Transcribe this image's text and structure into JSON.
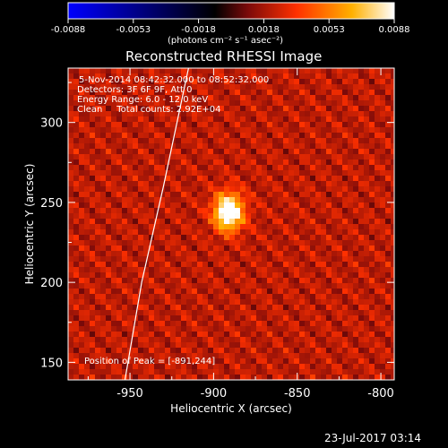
{
  "chart_data": {
    "type": "heatmap",
    "title": "Reconstructed RHESSI Image",
    "colorbar": {
      "ticks": [
        "-0.0088",
        "-0.0053",
        "-0.0018",
        "0.0018",
        "0.0053",
        "0.0088"
      ],
      "min": -0.0088,
      "max": 0.0088,
      "units_label": "(photons cm⁻² s⁻¹ asec⁻²)",
      "colormap": [
        "#0000ff",
        "#000000",
        "#7a0a0a",
        "#ff3000",
        "#ffb000",
        "#ffffff"
      ]
    },
    "xlabel": "Heliocentric X (arcsec)",
    "ylabel": "Heliocentric Y (arcsec)",
    "xlim": [
      -987,
      -792
    ],
    "ylim": [
      139,
      334
    ],
    "xticks": [
      "-950",
      "-900",
      "-850",
      "-800"
    ],
    "yticks": [
      "150",
      "200",
      "250",
      "300"
    ],
    "annotations": [
      "5-Nov-2014 08:42:32.000 to 08:52:32.000",
      "Detectors: 3F 6F 9F, Att 0",
      "Energy Range: 6.0 - 12.0 keV",
      "Clean     Total counts: 2.92E+04"
    ],
    "peak_label": "Position of Peak = [-891,244]",
    "peak": {
      "x": -891,
      "y": 244,
      "value": 0.0088
    },
    "limb_curve": [
      [
        -953,
        139
      ],
      [
        -943,
        200
      ],
      [
        -930,
        260
      ],
      [
        -915,
        334
      ]
    ],
    "timestamp": "23-Jul-2017 03:14"
  }
}
